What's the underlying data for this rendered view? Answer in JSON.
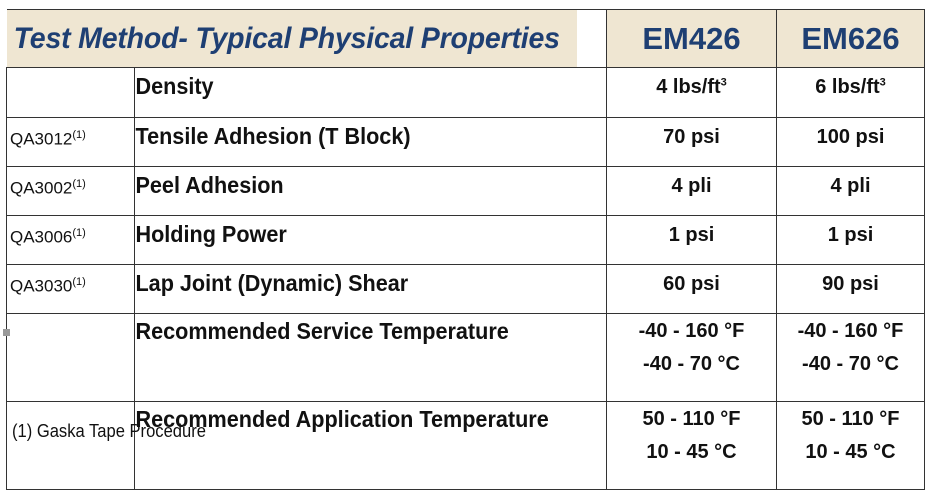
{
  "header": {
    "title": "Test Method- Typical Physical Properties",
    "col1": "EM426",
    "col2": "EM626"
  },
  "rows": [
    {
      "method": "",
      "method_sup": "",
      "property": "Density",
      "v1": "4 lbs/ft",
      "v1_sup": "3",
      "v2": "6 lbs/ft",
      "v2_sup": "3"
    },
    {
      "method": "QA3012",
      "method_sup": "(1)",
      "property": "Tensile Adhesion (T Block)",
      "v1": "70 psi",
      "v2": "100 psi"
    },
    {
      "method": "QA3002",
      "method_sup": "(1)",
      "property": "Peel Adhesion",
      "v1": "4 pli",
      "v2": "4 pli"
    },
    {
      "method": "QA3006",
      "method_sup": "(1)",
      "property": "Holding Power",
      "v1": "1 psi",
      "v2": "1 psi"
    },
    {
      "method": "QA3030",
      "method_sup": "(1)",
      "property": "Lap Joint (Dynamic) Shear",
      "v1": "60 psi",
      "v2": "90 psi"
    },
    {
      "method": "",
      "property": "Recommended Service Temperature",
      "v1": "-40 - 160 °F",
      "v1b": "-40 - 70 °C",
      "v2": "-40 - 160 °F",
      "v2b": "-40 - 70 °C"
    },
    {
      "method": "",
      "property": "Recommended Application Temperature",
      "v1": "50 - 110 °F",
      "v1b": "10 - 45 °C",
      "v2": "50 - 110 °F",
      "v2b": "10 - 45 °C"
    }
  ],
  "footnote": "(1) Gaska Tape Procedure"
}
